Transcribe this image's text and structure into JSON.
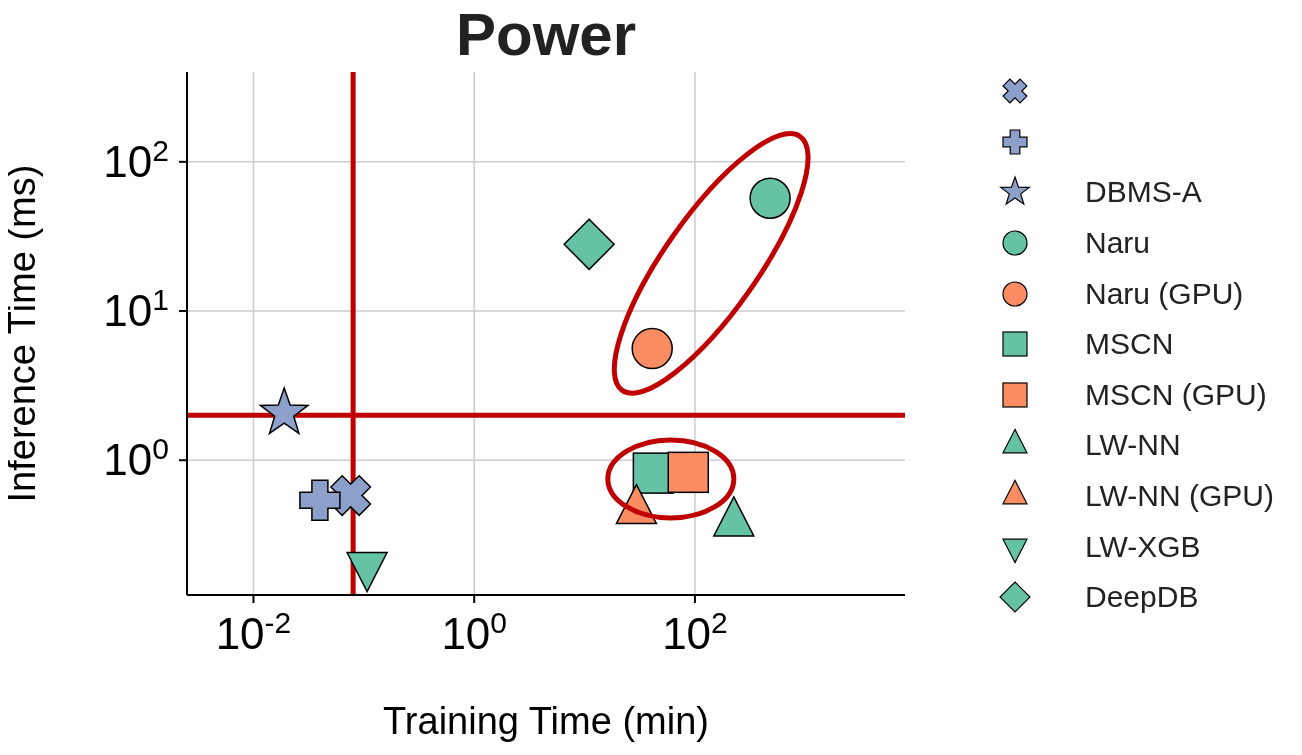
{
  "chart_data": {
    "type": "scatter",
    "title": "Power",
    "xlabel": "Training Time (min)",
    "ylabel": "Inference Time (ms)",
    "log": "xy",
    "xlim": [
      0.0025,
      8000
    ],
    "ylim": [
      0.125,
      400
    ],
    "xticks": [
      {
        "value": 0.01,
        "label": "10$^{-2}$"
      },
      {
        "value": 1,
        "label": "10$^{0}$"
      },
      {
        "value": 100,
        "label": "10$^{2}$"
      }
    ],
    "yticks": [
      {
        "value": 1,
        "label": "10$^{0}$"
      },
      {
        "value": 10,
        "label": "10$^{1}$"
      },
      {
        "value": 100,
        "label": "10$^{2}$"
      }
    ],
    "grid": true,
    "legend": "right",
    "ref_lines": [
      {
        "axis": "x",
        "value": 0.08,
        "color": "#c00000"
      },
      {
        "axis": "y",
        "value": 2,
        "color": "#c00000"
      }
    ],
    "series": [
      {
        "color": "#8da0cb",
        "marker": "cross",
        "x": [
          0.076
        ],
        "values": [
          0.58
        ]
      },
      {
        "color": "#8da0cb",
        "marker": "plus",
        "x": [
          0.04
        ],
        "values": [
          0.54
        ]
      },
      {
        "name": "DBMS-A",
        "color": "#8da0cb",
        "marker": "star",
        "x": [
          0.019
        ],
        "values": [
          2.07
        ]
      },
      {
        "name": "Naru",
        "color": "#66c2a5",
        "marker": "circle",
        "x": [
          480
        ],
        "values": [
          57
        ]
      },
      {
        "name": "Naru (GPU)",
        "color": "#fc8d62",
        "marker": "circle",
        "x": [
          41
        ],
        "values": [
          5.6
        ]
      },
      {
        "name": "MSCN",
        "color": "#66c2a5",
        "marker": "square",
        "x": [
          42
        ],
        "values": [
          0.82
        ]
      },
      {
        "name": "MSCN (GPU)",
        "color": "#fc8d62",
        "marker": "square",
        "x": [
          87
        ],
        "values": [
          0.83
        ]
      },
      {
        "name": "LW-NN",
        "color": "#66c2a5",
        "marker": "triangle",
        "x": [
          225
        ],
        "values": [
          0.38
        ]
      },
      {
        "name": "LW-NN (GPU)",
        "color": "#fc8d62",
        "marker": "triangle",
        "x": [
          29.5
        ],
        "values": [
          0.46
        ]
      },
      {
        "name": "LW-XGB",
        "color": "#66c2a5",
        "marker": "triangle-down",
        "x": [
          0.107
        ],
        "values": [
          0.197
        ]
      },
      {
        "name": "DeepDB",
        "color": "#66c2a5",
        "marker": "diamond",
        "x": [
          11
        ],
        "values": [
          28
        ]
      }
    ]
  }
}
